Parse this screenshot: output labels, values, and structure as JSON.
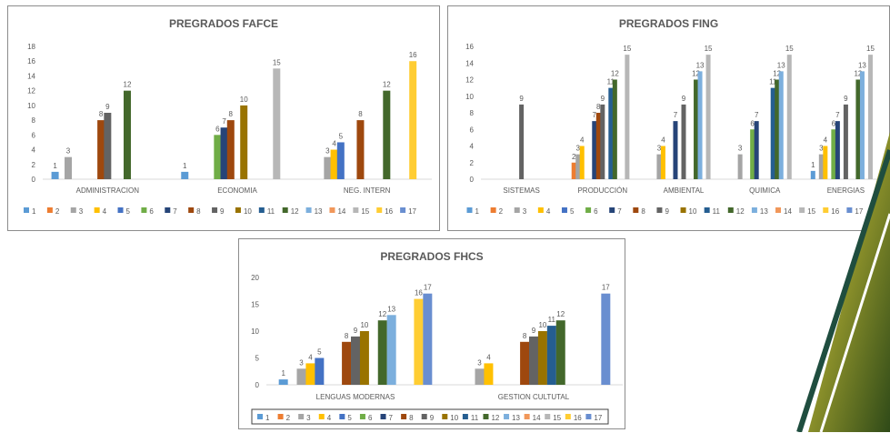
{
  "colors": [
    "#5b9bd5",
    "#ed7d31",
    "#a5a5a5",
    "#ffc000",
    "#4472c4",
    "#70ad47",
    "#264478",
    "#9e480e",
    "#636363",
    "#997300",
    "#255e91",
    "#43682b",
    "#7cafdd",
    "#f1975a",
    "#b7b7b7",
    "#ffcd33",
    "#698ed0"
  ],
  "chart_data": [
    {
      "type": "bar",
      "title": "PREGRADOS FAFCE",
      "categories": [
        "ADMINISTRACION",
        "ECONOMIA",
        "NEG. INTERN"
      ],
      "ylim": [
        0,
        18
      ],
      "yticks": [
        0,
        2,
        4,
        6,
        8,
        10,
        12,
        14,
        16,
        18
      ],
      "legend": [
        "1",
        "2",
        "3",
        "4",
        "5",
        "6",
        "7",
        "8",
        "9",
        "10",
        "11",
        "12",
        "13",
        "14",
        "15",
        "16",
        "17"
      ],
      "legend_position": "bottom",
      "bars": [
        [
          [
            1,
            1
          ],
          [
            3,
            3
          ],
          [
            8,
            8
          ],
          [
            9,
            9
          ],
          [
            12,
            12
          ]
        ],
        [
          [
            1,
            1
          ],
          [
            6,
            6
          ],
          [
            7,
            7
          ],
          [
            8,
            8
          ],
          [
            10,
            10
          ],
          [
            15,
            15
          ]
        ],
        [
          [
            3,
            3
          ],
          [
            4,
            4
          ],
          [
            5,
            5
          ],
          [
            8,
            8
          ],
          [
            12,
            12
          ],
          [
            16,
            16
          ]
        ]
      ]
    },
    {
      "type": "bar",
      "title": "PREGRADOS FING",
      "categories": [
        "SISTEMAS",
        "PRODUCCIÓN",
        "AMBIENTAL",
        "QUIMICA",
        "ENERGIAS"
      ],
      "ylim": [
        0,
        16
      ],
      "yticks": [
        0,
        2,
        4,
        6,
        8,
        10,
        12,
        14,
        16
      ],
      "legend": [
        "1",
        "2",
        "3",
        "4",
        "5",
        "6",
        "7",
        "8",
        "9",
        "10",
        "11",
        "12",
        "13",
        "14",
        "15",
        "16",
        "17"
      ],
      "legend_position": "bottom",
      "bars": [
        [
          [
            9,
            9
          ]
        ],
        [
          [
            2,
            2
          ],
          [
            3,
            3
          ],
          [
            4,
            4
          ],
          [
            7,
            7
          ],
          [
            8,
            8
          ],
          [
            9,
            9
          ],
          [
            11,
            11
          ],
          [
            12,
            12
          ],
          [
            15,
            15
          ]
        ],
        [
          [
            3,
            3
          ],
          [
            4,
            4
          ],
          [
            7,
            7
          ],
          [
            9,
            9
          ],
          [
            12,
            12
          ],
          [
            13,
            13
          ],
          [
            15,
            15
          ]
        ],
        [
          [
            3,
            3
          ],
          [
            6,
            6
          ],
          [
            7,
            7
          ],
          [
            11,
            11
          ],
          [
            12,
            12
          ],
          [
            13,
            13
          ],
          [
            15,
            15
          ]
        ],
        [
          [
            1,
            1
          ],
          [
            3,
            3
          ],
          [
            4,
            4
          ],
          [
            6,
            6
          ],
          [
            7,
            7
          ],
          [
            9,
            9
          ],
          [
            12,
            12
          ],
          [
            13,
            13
          ],
          [
            15,
            15
          ]
        ]
      ]
    },
    {
      "type": "bar",
      "title": "PREGRADOS FHCS",
      "categories": [
        "LENGUAS MODERNAS",
        "GESTION CULTUTAL"
      ],
      "ylim": [
        0,
        20
      ],
      "yticks": [
        0,
        5,
        10,
        15,
        20
      ],
      "legend": [
        "1",
        "2",
        "3",
        "4",
        "5",
        "6",
        "7",
        "8",
        "9",
        "10",
        "11",
        "12",
        "13",
        "14",
        "15",
        "16",
        "17"
      ],
      "legend_position": "bottom",
      "bars": [
        [
          [
            1,
            1
          ],
          [
            3,
            3
          ],
          [
            4,
            4
          ],
          [
            5,
            5
          ],
          [
            8,
            8
          ],
          [
            9,
            9
          ],
          [
            10,
            10
          ],
          [
            12,
            12
          ],
          [
            13,
            13
          ],
          [
            16,
            16
          ],
          [
            17,
            17
          ]
        ],
        [
          [
            3,
            3
          ],
          [
            4,
            4
          ],
          [
            8,
            8
          ],
          [
            9,
            9
          ],
          [
            10,
            10
          ],
          [
            11,
            11
          ],
          [
            12,
            12
          ],
          [
            17,
            17
          ]
        ]
      ]
    }
  ]
}
